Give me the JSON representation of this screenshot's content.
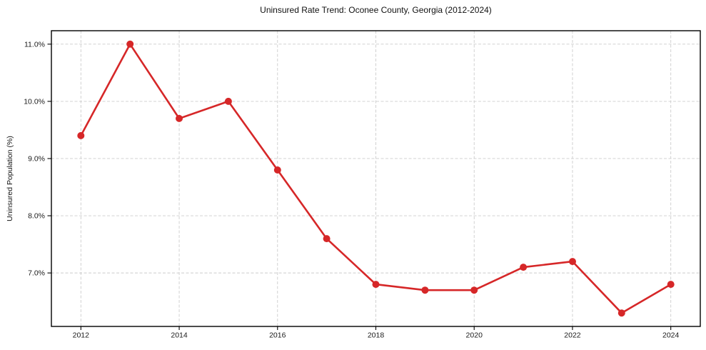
{
  "chart_data": {
    "type": "line",
    "title": "Uninsured Rate Trend: Oconee County, Georgia (2012-2024)",
    "xlabel": "",
    "ylabel": "Uninsured Population (%)",
    "x": [
      2012,
      2013,
      2014,
      2015,
      2016,
      2017,
      2018,
      2019,
      2020,
      2021,
      2022,
      2023,
      2024
    ],
    "values": [
      9.4,
      11.0,
      9.7,
      10.0,
      8.8,
      7.6,
      6.8,
      6.7,
      6.7,
      7.1,
      7.2,
      6.3,
      6.8
    ],
    "xlim": [
      2011.4,
      2024.6
    ],
    "ylim": [
      6.065,
      11.235
    ],
    "xticks": [
      2012,
      2014,
      2016,
      2018,
      2020,
      2022,
      2024
    ],
    "xtick_labels": [
      "2012",
      "2014",
      "2016",
      "2018",
      "2020",
      "2022",
      "2024"
    ],
    "yticks": [
      7.0,
      8.0,
      9.0,
      10.0,
      11.0
    ],
    "ytick_labels": [
      "7.0%",
      "8.0%",
      "9.0%",
      "10.0%",
      "11.0%"
    ],
    "grid": true,
    "grid_style": "dashed",
    "legend": false,
    "line_color": "#d62728",
    "marker": "circle",
    "colors": {
      "grid": "#cccccc",
      "spine": "#000000",
      "tick_text": "#1a1a1a",
      "background": "#ffffff"
    }
  }
}
